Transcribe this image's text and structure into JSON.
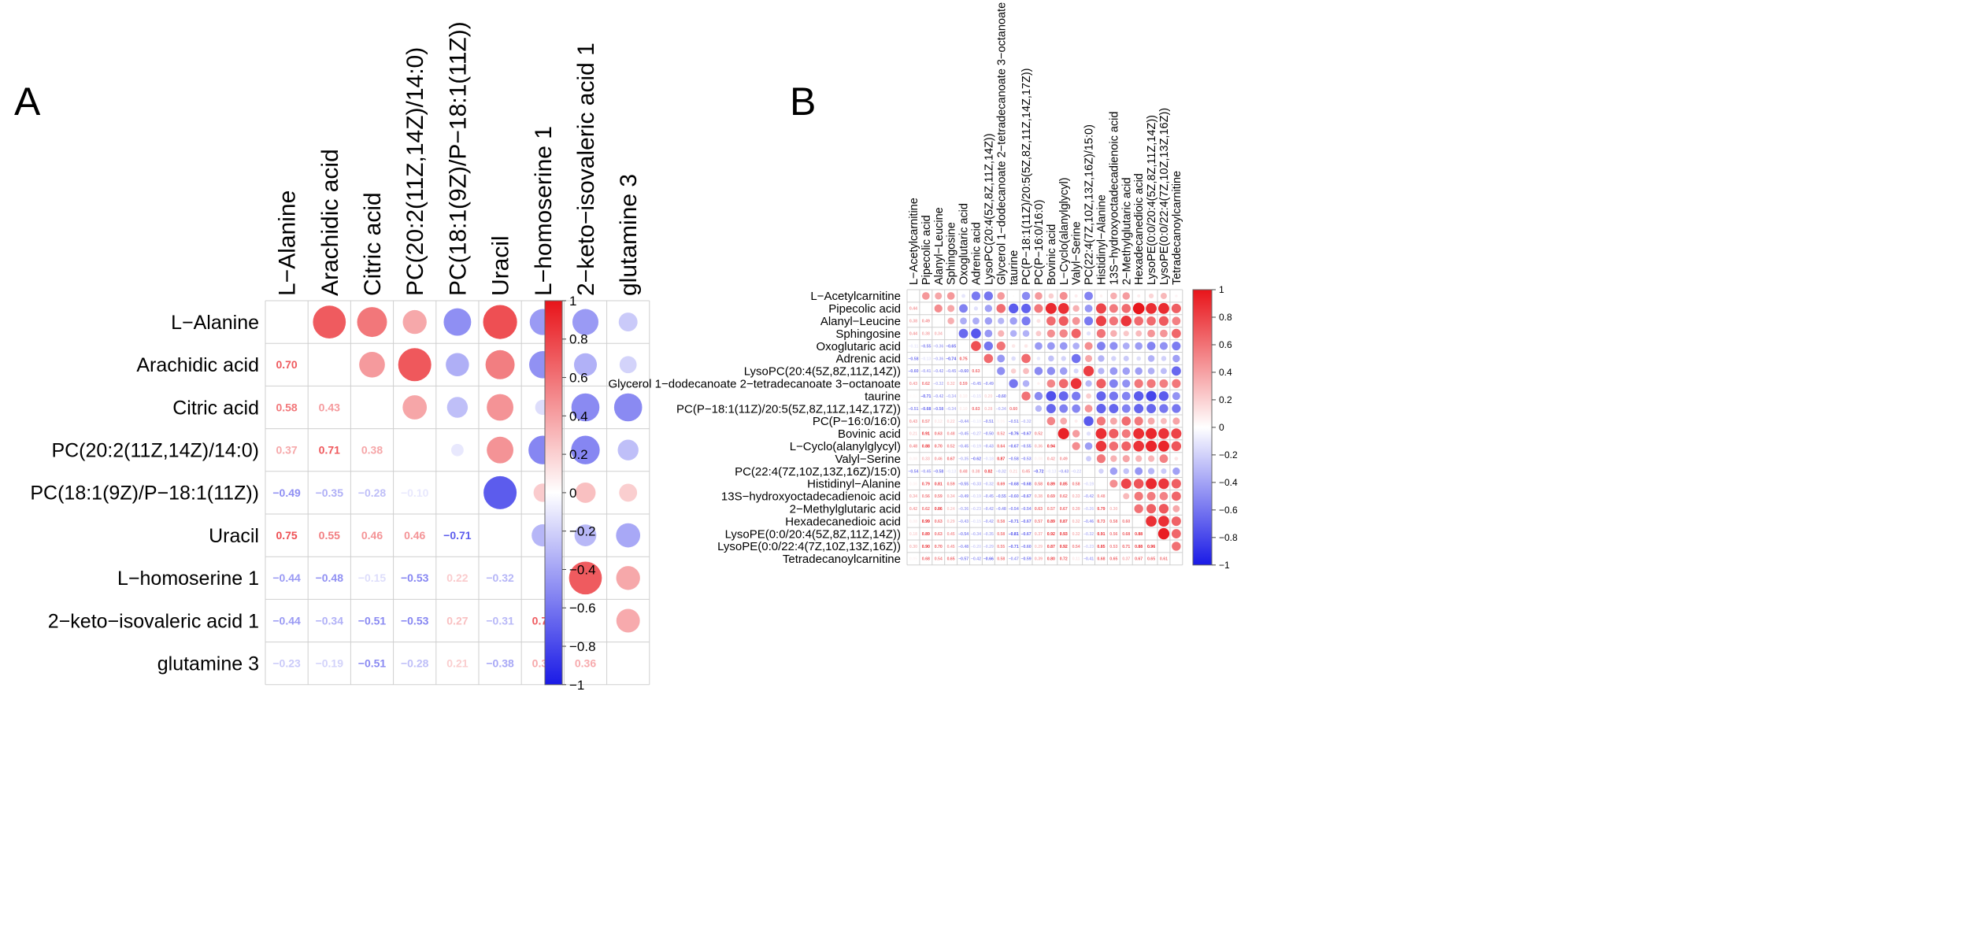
{
  "colors": {
    "positive": "#e8141a",
    "negative": "#1a1ae6",
    "neutral": "#ffffff",
    "grid": "#cfcfcf"
  },
  "chart_data": [
    {
      "panel": "A",
      "type": "heatmap",
      "style": "mixed correlogram: circles above diagonal, numbers below diagonal",
      "labels": [
        "L−Alanine",
        "Arachidic acid",
        "Citric acid",
        "PC(20:2(11Z,14Z)/14:0)",
        "PC(18:1(9Z)/P−18:1(11Z))",
        "Uracil",
        "L−homoserine 1",
        "2−keto−isovaleric acid 1",
        "glutamine 3"
      ],
      "matrix": [
        [
          1,
          0.7,
          0.58,
          0.37,
          -0.49,
          0.75,
          -0.44,
          -0.44,
          -0.23
        ],
        [
          0.7,
          1,
          0.43,
          0.71,
          -0.35,
          0.55,
          -0.48,
          -0.34,
          -0.19
        ],
        [
          0.58,
          0.43,
          1,
          0.38,
          -0.28,
          0.46,
          -0.15,
          -0.51,
          -0.51
        ],
        [
          0.37,
          0.71,
          0.38,
          1,
          -0.1,
          0.46,
          -0.53,
          -0.53,
          -0.28
        ],
        [
          -0.49,
          -0.35,
          -0.28,
          -0.1,
          1,
          -0.71,
          0.22,
          0.27,
          0.21
        ],
        [
          0.75,
          0.55,
          0.46,
          0.46,
          -0.71,
          1,
          -0.32,
          -0.31,
          -0.38
        ],
        [
          -0.44,
          -0.48,
          -0.15,
          -0.53,
          0.22,
          -0.32,
          1,
          0.7,
          0.37
        ],
        [
          -0.44,
          -0.34,
          -0.51,
          -0.53,
          0.27,
          -0.31,
          0.7,
          1,
          0.36
        ],
        [
          -0.23,
          -0.19,
          -0.51,
          -0.28,
          0.21,
          -0.38,
          0.37,
          0.36,
          1
        ]
      ],
      "colorbar_ticks": [
        "1",
        "0.8",
        "0.6",
        "0.4",
        "0.2",
        "0",
        "−0.2",
        "−0.4",
        "−0.6",
        "−0.8",
        "−1"
      ],
      "range": [
        -1,
        1
      ]
    },
    {
      "panel": "B",
      "type": "heatmap",
      "style": "mixed correlogram: circles above diagonal, numbers below diagonal",
      "labels": [
        "L−Acetylcarnitine",
        "Pipecolic acid",
        "Alanyl−Leucine",
        "Sphingosine",
        "Oxoglutaric acid",
        "Adrenic acid",
        "LysoPC(20:4(5Z,8Z,11Z,14Z))",
        "Glycerol 1−dodecanoate 2−tetradecanoate 3−octanoate",
        "taurine",
        "PC(P−18:1(11Z)/20:5(5Z,8Z,11Z,14Z,17Z))",
        "PC(P−16:0/16:0)",
        "Bovinic acid",
        "L−Cyclo(alanylglycyl)",
        "Valyl−Serine",
        "PC(22:4(7Z,10Z,13Z,16Z)/15:0)",
        "Histidinyl−Alanine",
        "13S−hydroxyoctadecadienoic acid",
        "2−Methylglutaric acid",
        "Hexadecanedioic acid",
        "LysoPE(0:0/20:4(5Z,8Z,11Z,14Z))",
        "LysoPE(0:0/22:4(7Z,10Z,13Z,16Z))",
        "Tetradecanoylcarnitine"
      ],
      "matrix": [
        [
          1,
          0.44,
          0.38,
          0.44,
          -0.11,
          -0.58,
          -0.6,
          0.43,
          0.02,
          -0.51,
          0.43,
          0.21,
          0.48,
          0.08,
          -0.54,
          0.06,
          0.34,
          0.42,
          0.08,
          0.18,
          0.3,
          0.05
        ],
        [
          0.44,
          1,
          0.49,
          0.38,
          -0.55,
          -0.13,
          -0.41,
          0.62,
          -0.71,
          -0.68,
          0.57,
          0.91,
          0.88,
          0.33,
          -0.45,
          0.79,
          0.56,
          0.62,
          0.99,
          0.89,
          0.9,
          0.68
        ],
        [
          0.38,
          0.49,
          1,
          0.34,
          -0.36,
          -0.36,
          -0.42,
          -0.32,
          -0.42,
          -0.58,
          0.12,
          0.63,
          0.7,
          0.46,
          -0.58,
          0.81,
          0.59,
          0.86,
          0.63,
          0.63,
          0.7,
          0.54
        ],
        [
          0.44,
          0.38,
          0.34,
          1,
          -0.65,
          -0.74,
          -0.45,
          0.32,
          -0.34,
          -0.34,
          0.22,
          0.48,
          0.52,
          0.67,
          -0.13,
          0.59,
          0.34,
          0.24,
          0.29,
          0.45,
          0.45,
          0.65
        ],
        [
          -0.11,
          -0.55,
          -0.36,
          -0.65,
          1,
          0.75,
          -0.6,
          0.59,
          0.1,
          0.1,
          -0.44,
          -0.45,
          -0.45,
          -0.35,
          0.48,
          -0.55,
          -0.49,
          -0.36,
          -0.43,
          -0.54,
          -0.48,
          -0.57
        ],
        [
          -0.58,
          -0.13,
          -0.36,
          -0.74,
          0.75,
          1,
          0.63,
          -0.45,
          -0.15,
          0.63,
          -0.1,
          -0.27,
          -0.19,
          -0.62,
          0.38,
          -0.33,
          -0.19,
          -0.23,
          -0.15,
          -0.34,
          -0.2,
          -0.42
        ],
        [
          -0.6,
          -0.41,
          -0.42,
          -0.45,
          -0.6,
          0.63,
          1,
          -0.49,
          0.2,
          0.28,
          -0.51,
          -0.5,
          -0.43,
          -0.18,
          0.82,
          -0.32,
          -0.45,
          -0.42,
          -0.42,
          -0.35,
          -0.29,
          -0.66
        ],
        [
          0.43,
          0.62,
          -0.32,
          0.32,
          0.59,
          -0.45,
          -0.49,
          1,
          -0.6,
          -0.34,
          0.06,
          0.52,
          0.64,
          0.87,
          -0.32,
          0.69,
          -0.55,
          -0.48,
          0.58,
          0.58,
          0.55,
          0.58
        ],
        [
          0.02,
          -0.71,
          -0.42,
          -0.34,
          0.1,
          -0.15,
          0.2,
          -0.6,
          1,
          0.6,
          -0.51,
          -0.76,
          -0.67,
          -0.58,
          0.21,
          -0.68,
          -0.6,
          -0.54,
          -0.71,
          -0.81,
          -0.71,
          -0.47
        ],
        [
          -0.51,
          -0.68,
          -0.58,
          -0.34,
          0.1,
          0.63,
          0.28,
          -0.34,
          0.6,
          1,
          -0.32,
          -0.67,
          -0.55,
          -0.53,
          0.45,
          -0.68,
          -0.67,
          -0.54,
          -0.67,
          -0.67,
          -0.6,
          -0.59
        ],
        [
          0.43,
          0.57,
          0.12,
          0.22,
          -0.44,
          -0.1,
          -0.51,
          0.06,
          -0.51,
          -0.32,
          1,
          0.52,
          0.36,
          0.08,
          -0.72,
          0.58,
          0.38,
          0.63,
          0.57,
          0.37,
          0.29,
          0.39
        ],
        [
          0.21,
          0.91,
          0.63,
          0.48,
          -0.45,
          -0.27,
          -0.5,
          0.52,
          -0.76,
          -0.67,
          0.52,
          1,
          0.94,
          0.42,
          -0.13,
          0.89,
          0.69,
          0.57,
          0.89,
          0.92,
          0.87,
          0.8
        ],
        [
          0.48,
          0.88,
          0.7,
          0.52,
          -0.45,
          -0.19,
          -0.43,
          0.64,
          -0.67,
          -0.55,
          0.36,
          0.94,
          1,
          0.49,
          -0.43,
          0.85,
          0.62,
          0.67,
          0.87,
          0.93,
          0.92,
          0.72
        ],
        [
          0.08,
          0.33,
          0.46,
          0.67,
          -0.35,
          -0.62,
          -0.18,
          0.87,
          -0.58,
          -0.53,
          0.08,
          0.42,
          0.49,
          1,
          -0.22,
          0.58,
          0.33,
          0.39,
          0.32,
          0.32,
          0.54,
          0.11
        ],
        [
          -0.54,
          -0.45,
          -0.58,
          -0.13,
          0.48,
          0.38,
          0.82,
          -0.32,
          0.21,
          0.45,
          -0.72,
          -0.13,
          -0.43,
          -0.22,
          1,
          -0.19,
          -0.42,
          -0.26,
          -0.46,
          -0.32,
          -0.23,
          -0.41
        ],
        [
          0.06,
          0.79,
          0.81,
          0.59,
          -0.55,
          -0.33,
          -0.32,
          0.69,
          -0.68,
          -0.68,
          0.58,
          0.89,
          0.85,
          0.58,
          -0.19,
          1,
          0.48,
          0.79,
          0.73,
          0.91,
          0.85,
          0.68
        ],
        [
          0.34,
          0.56,
          0.59,
          0.34,
          -0.49,
          -0.19,
          -0.45,
          -0.55,
          -0.6,
          -0.67,
          0.38,
          0.69,
          0.62,
          0.33,
          -0.42,
          0.48,
          1,
          0.3,
          0.58,
          0.56,
          0.53,
          0.65
        ],
        [
          0.42,
          0.62,
          0.86,
          0.24,
          -0.36,
          -0.23,
          -0.42,
          -0.48,
          -0.54,
          -0.54,
          0.63,
          0.57,
          0.67,
          0.39,
          -0.26,
          0.79,
          0.3,
          1,
          0.6,
          0.68,
          0.71,
          0.37
        ],
        [
          0.08,
          0.99,
          0.63,
          0.29,
          -0.43,
          -0.15,
          -0.42,
          0.58,
          -0.71,
          -0.67,
          0.57,
          0.89,
          0.87,
          0.32,
          -0.46,
          0.73,
          0.58,
          0.6,
          1,
          0.88,
          0.88,
          0.67
        ],
        [
          0.18,
          0.89,
          0.63,
          0.45,
          -0.54,
          -0.34,
          -0.35,
          0.58,
          -0.81,
          -0.67,
          0.37,
          0.92,
          0.93,
          0.32,
          -0.32,
          0.91,
          0.56,
          0.68,
          0.88,
          1,
          0.96,
          0.65
        ],
        [
          0.3,
          0.9,
          0.7,
          0.45,
          -0.48,
          -0.2,
          -0.29,
          0.55,
          -0.71,
          -0.6,
          0.29,
          0.87,
          0.92,
          0.54,
          -0.23,
          0.85,
          0.53,
          0.71,
          0.88,
          0.96,
          1,
          0.61
        ],
        [
          0.05,
          0.68,
          0.54,
          0.65,
          -0.57,
          -0.42,
          -0.66,
          0.58,
          -0.47,
          -0.59,
          0.39,
          0.8,
          0.72,
          0.11,
          -0.41,
          0.68,
          0.65,
          0.37,
          0.67,
          0.65,
          0.61,
          1
        ]
      ],
      "colorbar_ticks": [
        "1",
        "0.8",
        "0.6",
        "0.4",
        "0.2",
        "0",
        "−0.2",
        "−0.4",
        "−0.6",
        "−0.8",
        "−1"
      ],
      "range": [
        -1,
        1
      ]
    }
  ],
  "panel_labels": {
    "a": "A",
    "b": "B"
  }
}
